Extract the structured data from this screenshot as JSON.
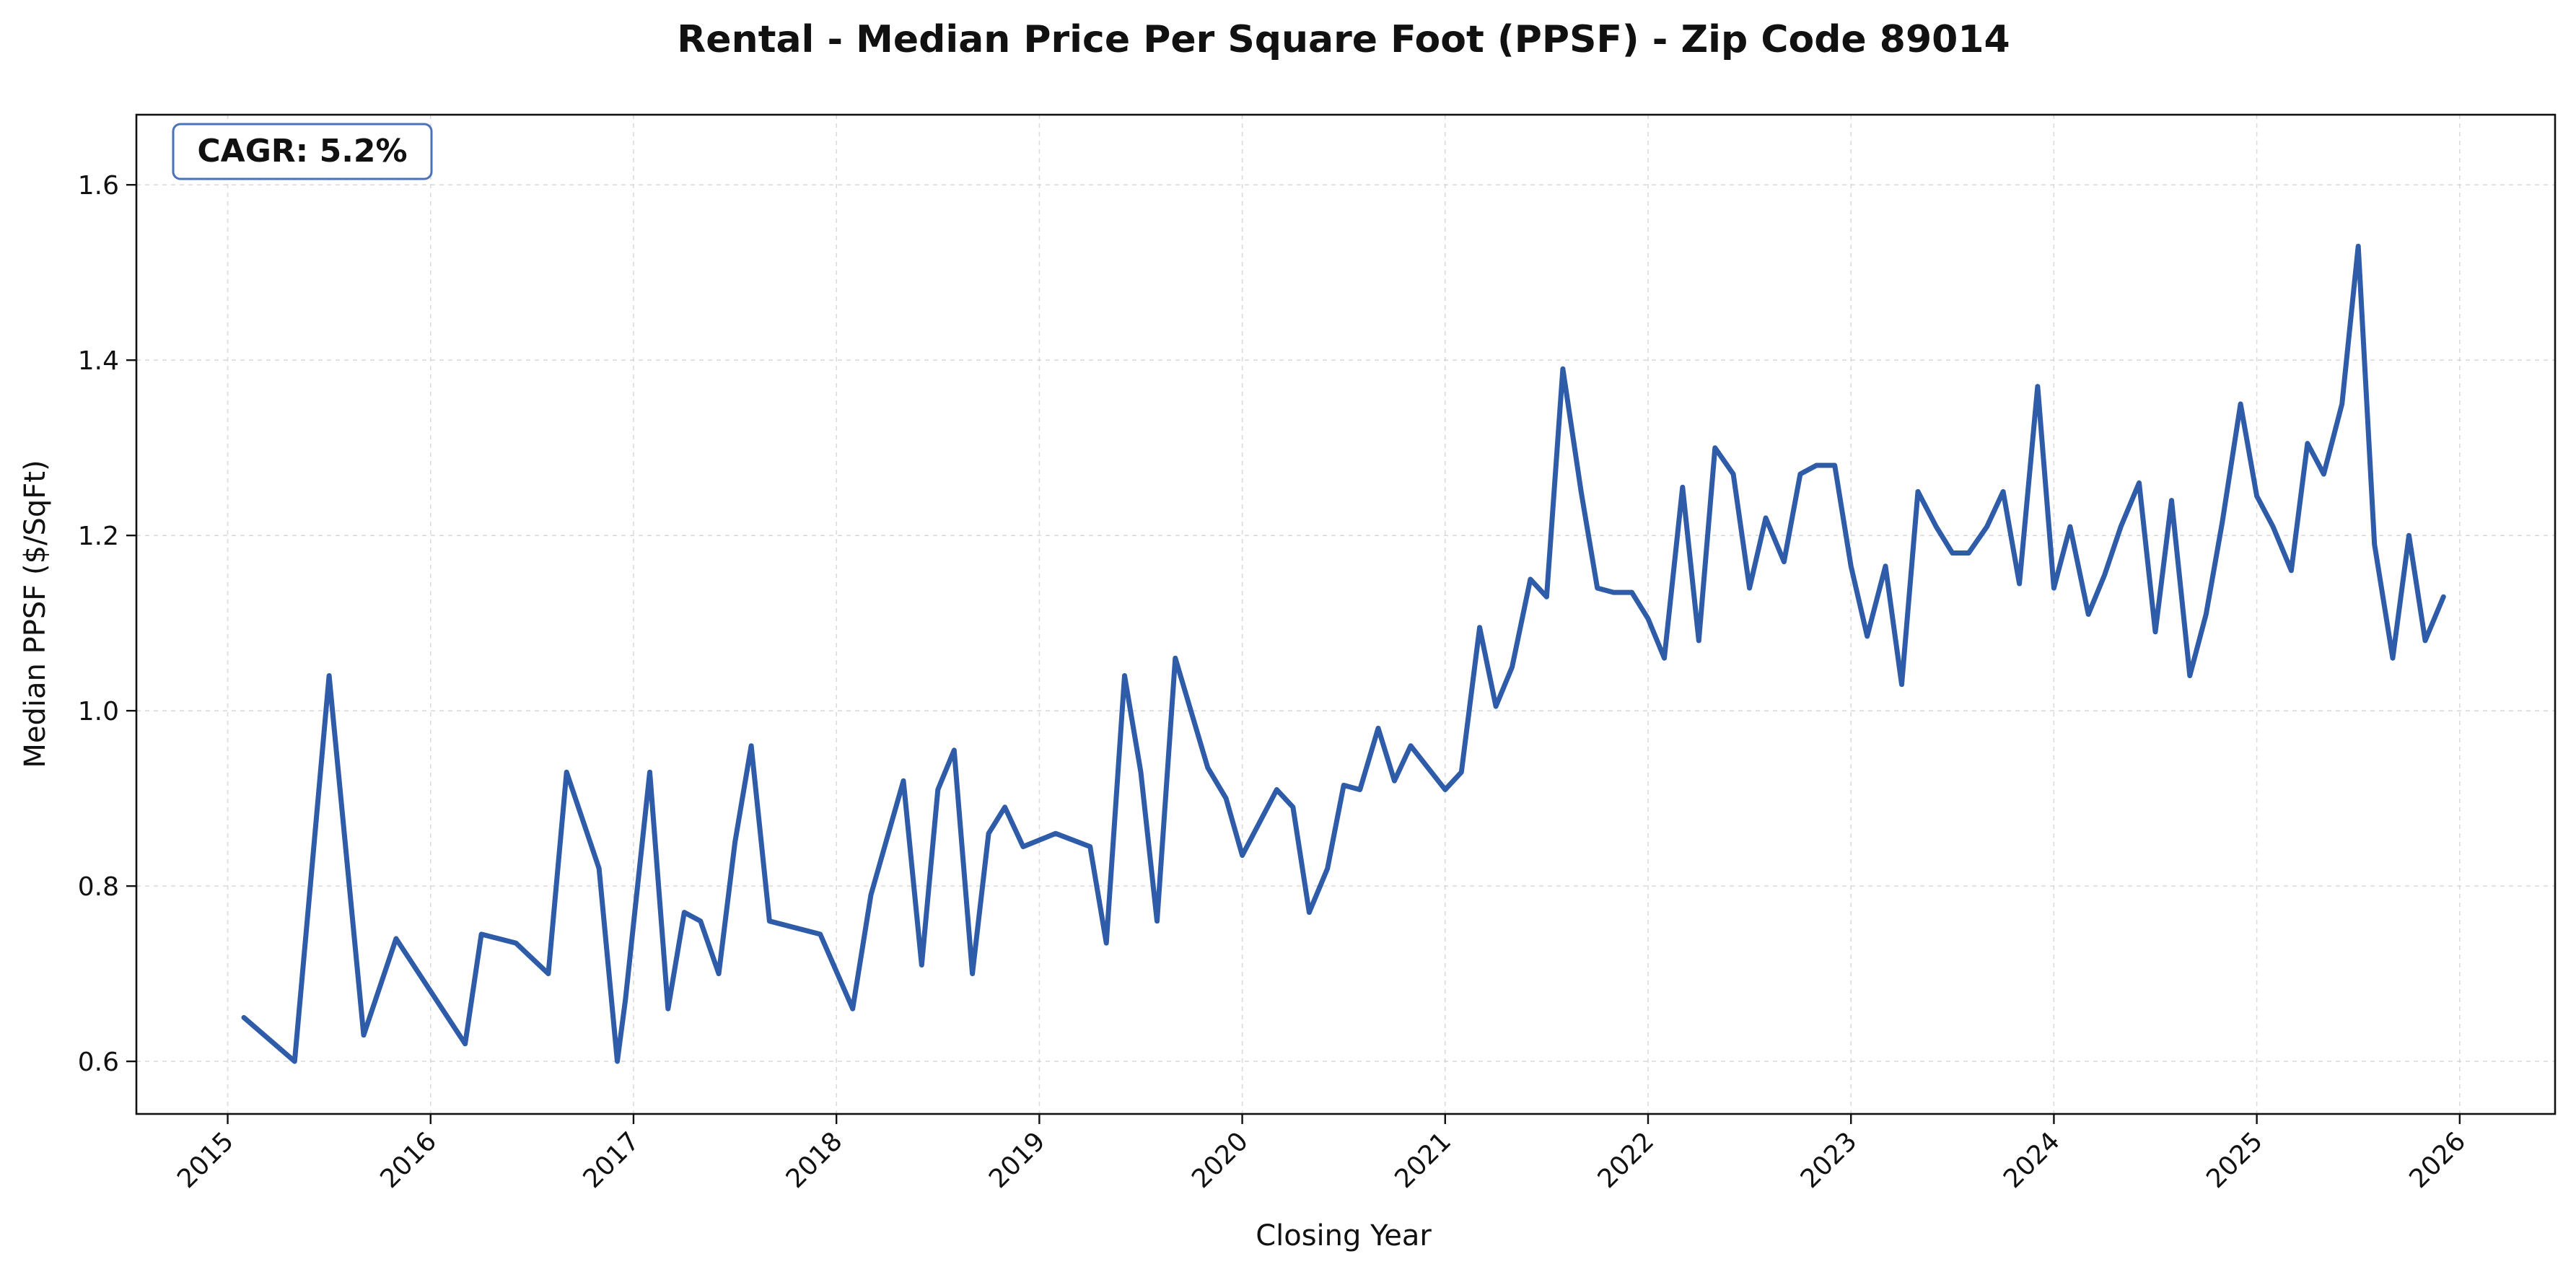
{
  "chart_data": {
    "type": "line",
    "title": "Rental - Median Price Per Square Foot (PPSF) - Zip Code 89014",
    "xlabel": "Closing Year",
    "ylabel": "Median PPSF ($/SqFt)",
    "xlim": [
      2014.55,
      2026.47
    ],
    "ylim": [
      0.54,
      1.68
    ],
    "x_ticks": [
      2015,
      2016,
      2017,
      2018,
      2019,
      2020,
      2021,
      2022,
      2023,
      2024,
      2025,
      2026
    ],
    "x_tick_labels": [
      "2015",
      "2016",
      "2017",
      "2018",
      "2019",
      "2020",
      "2021",
      "2022",
      "2023",
      "2024",
      "2025",
      "2026"
    ],
    "y_ticks": [
      0.6,
      0.8,
      1.0,
      1.2,
      1.4,
      1.6
    ],
    "y_tick_labels": [
      "0.6",
      "0.8",
      "1.0",
      "1.2",
      "1.4",
      "1.6"
    ],
    "grid": true,
    "line_color": "#2f5ca8",
    "annotation": {
      "text": "CAGR: 5.2%",
      "position": "top-left",
      "border_color": "#4a72b8"
    },
    "series": [
      {
        "name": "Median PPSF",
        "points": [
          [
            2015.08,
            0.65
          ],
          [
            2015.33,
            0.6
          ],
          [
            2015.5,
            1.04
          ],
          [
            2015.67,
            0.63
          ],
          [
            2015.83,
            0.74
          ],
          [
            2016.17,
            0.62
          ],
          [
            2016.25,
            0.745
          ],
          [
            2016.42,
            0.735
          ],
          [
            2016.58,
            0.7
          ],
          [
            2016.67,
            0.93
          ],
          [
            2016.83,
            0.82
          ],
          [
            2016.92,
            0.6
          ],
          [
            2016.96,
            0.67
          ],
          [
            2017.08,
            0.93
          ],
          [
            2017.17,
            0.66
          ],
          [
            2017.25,
            0.77
          ],
          [
            2017.33,
            0.76
          ],
          [
            2017.42,
            0.7
          ],
          [
            2017.5,
            0.85
          ],
          [
            2017.58,
            0.96
          ],
          [
            2017.67,
            0.76
          ],
          [
            2017.92,
            0.745
          ],
          [
            2018.08,
            0.66
          ],
          [
            2018.17,
            0.79
          ],
          [
            2018.33,
            0.92
          ],
          [
            2018.42,
            0.71
          ],
          [
            2018.5,
            0.91
          ],
          [
            2018.58,
            0.955
          ],
          [
            2018.67,
            0.7
          ],
          [
            2018.75,
            0.86
          ],
          [
            2018.83,
            0.89
          ],
          [
            2018.92,
            0.845
          ],
          [
            2019.08,
            0.86
          ],
          [
            2019.25,
            0.845
          ],
          [
            2019.33,
            0.735
          ],
          [
            2019.42,
            1.04
          ],
          [
            2019.5,
            0.93
          ],
          [
            2019.58,
            0.76
          ],
          [
            2019.67,
            1.06
          ],
          [
            2019.83,
            0.935
          ],
          [
            2019.92,
            0.9
          ],
          [
            2020.0,
            0.835
          ],
          [
            2020.17,
            0.91
          ],
          [
            2020.25,
            0.89
          ],
          [
            2020.33,
            0.77
          ],
          [
            2020.42,
            0.82
          ],
          [
            2020.5,
            0.915
          ],
          [
            2020.58,
            0.91
          ],
          [
            2020.67,
            0.98
          ],
          [
            2020.75,
            0.92
          ],
          [
            2020.83,
            0.96
          ],
          [
            2021.0,
            0.91
          ],
          [
            2021.08,
            0.93
          ],
          [
            2021.17,
            1.095
          ],
          [
            2021.25,
            1.005
          ],
          [
            2021.33,
            1.05
          ],
          [
            2021.42,
            1.15
          ],
          [
            2021.5,
            1.13
          ],
          [
            2021.58,
            1.39
          ],
          [
            2021.67,
            1.25
          ],
          [
            2021.75,
            1.14
          ],
          [
            2021.83,
            1.135
          ],
          [
            2021.92,
            1.135
          ],
          [
            2022.0,
            1.105
          ],
          [
            2022.08,
            1.06
          ],
          [
            2022.17,
            1.255
          ],
          [
            2022.25,
            1.08
          ],
          [
            2022.33,
            1.3
          ],
          [
            2022.42,
            1.27
          ],
          [
            2022.5,
            1.14
          ],
          [
            2022.58,
            1.22
          ],
          [
            2022.67,
            1.17
          ],
          [
            2022.75,
            1.27
          ],
          [
            2022.83,
            1.28
          ],
          [
            2022.92,
            1.28
          ],
          [
            2023.0,
            1.165
          ],
          [
            2023.08,
            1.085
          ],
          [
            2023.17,
            1.165
          ],
          [
            2023.25,
            1.03
          ],
          [
            2023.33,
            1.25
          ],
          [
            2023.42,
            1.21
          ],
          [
            2023.5,
            1.18
          ],
          [
            2023.58,
            1.18
          ],
          [
            2023.67,
            1.21
          ],
          [
            2023.75,
            1.25
          ],
          [
            2023.83,
            1.145
          ],
          [
            2023.92,
            1.37
          ],
          [
            2024.0,
            1.14
          ],
          [
            2024.08,
            1.21
          ],
          [
            2024.17,
            1.11
          ],
          [
            2024.25,
            1.155
          ],
          [
            2024.33,
            1.21
          ],
          [
            2024.42,
            1.26
          ],
          [
            2024.5,
            1.09
          ],
          [
            2024.58,
            1.24
          ],
          [
            2024.67,
            1.04
          ],
          [
            2024.75,
            1.11
          ],
          [
            2024.83,
            1.215
          ],
          [
            2024.92,
            1.35
          ],
          [
            2025.0,
            1.245
          ],
          [
            2025.08,
            1.21
          ],
          [
            2025.17,
            1.16
          ],
          [
            2025.25,
            1.305
          ],
          [
            2025.33,
            1.27
          ],
          [
            2025.42,
            1.35
          ],
          [
            2025.5,
            1.53
          ],
          [
            2025.58,
            1.19
          ],
          [
            2025.67,
            1.06
          ],
          [
            2025.75,
            1.2
          ],
          [
            2025.83,
            1.08
          ],
          [
            2025.92,
            1.13
          ]
        ]
      }
    ]
  }
}
